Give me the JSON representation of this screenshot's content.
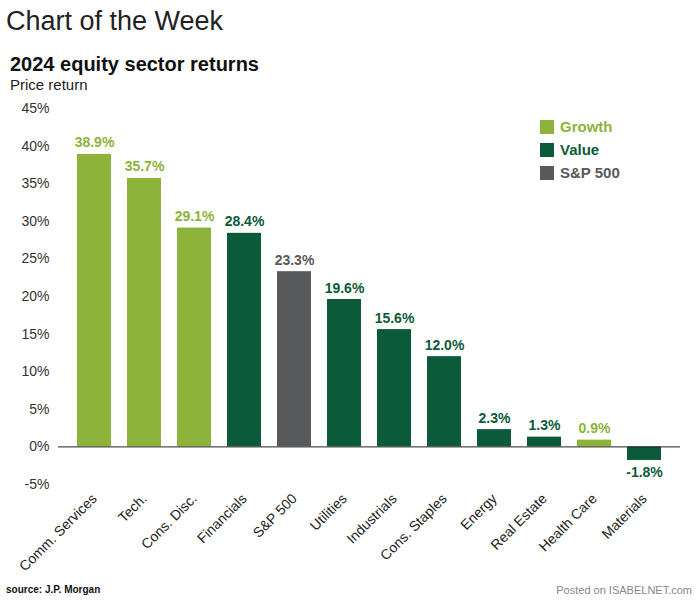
{
  "chart_data": {
    "type": "bar",
    "title": "Chart of the Week",
    "subtitle": "2024 equity sector returns",
    "y_label": "Price return",
    "source": "source: J.P. Morgan",
    "watermark": [
      "Posted on",
      "ISABELNET.com"
    ],
    "categories": [
      "Comm. Services",
      "Tech.",
      "Cons. Disc.",
      "Financials",
      "S&P 500",
      "Utilities",
      "Industrials",
      "Cons. Staples",
      "Energy",
      "Real Estate",
      "Health Care",
      "Materials"
    ],
    "series": [
      {
        "name": "Growth",
        "color": "#8db33a",
        "values": [
          38.9,
          35.7,
          29.1,
          null,
          null,
          null,
          null,
          null,
          null,
          null,
          0.9,
          null
        ],
        "value_labels": [
          "38.9%",
          "35.7%",
          "29.1%",
          null,
          null,
          null,
          null,
          null,
          null,
          null,
          "0.9%",
          null
        ]
      },
      {
        "name": "Value",
        "color": "#0b5a3a",
        "values": [
          null,
          null,
          null,
          28.4,
          null,
          19.6,
          15.6,
          12.0,
          2.3,
          1.3,
          null,
          -1.8
        ],
        "value_labels": [
          null,
          null,
          null,
          "28.4%",
          null,
          "19.6%",
          "15.6%",
          "12.0%",
          "2.3%",
          "1.3%",
          null,
          "-1.8%"
        ]
      },
      {
        "name": "S&P 500",
        "color": "#58595b",
        "values": [
          null,
          null,
          null,
          null,
          23.3,
          null,
          null,
          null,
          null,
          null,
          null,
          null
        ],
        "value_labels": [
          null,
          null,
          null,
          null,
          "23.3%",
          null,
          null,
          null,
          null,
          null,
          null,
          null
        ]
      }
    ],
    "ylim": [
      -5,
      45
    ],
    "yticks": [
      {
        "value": -5,
        "label": "-5%"
      },
      {
        "value": 0,
        "label": "0%"
      },
      {
        "value": 5,
        "label": "5%"
      },
      {
        "value": 10,
        "label": "10%"
      },
      {
        "value": 15,
        "label": "15%"
      },
      {
        "value": 20,
        "label": "20%"
      },
      {
        "value": 25,
        "label": "25%"
      },
      {
        "value": 30,
        "label": "30%"
      },
      {
        "value": 35,
        "label": "35%"
      },
      {
        "value": 40,
        "label": "40%"
      },
      {
        "value": 45,
        "label": "45%"
      }
    ],
    "grid": false,
    "legend": "top-right",
    "data_labels": true
  }
}
